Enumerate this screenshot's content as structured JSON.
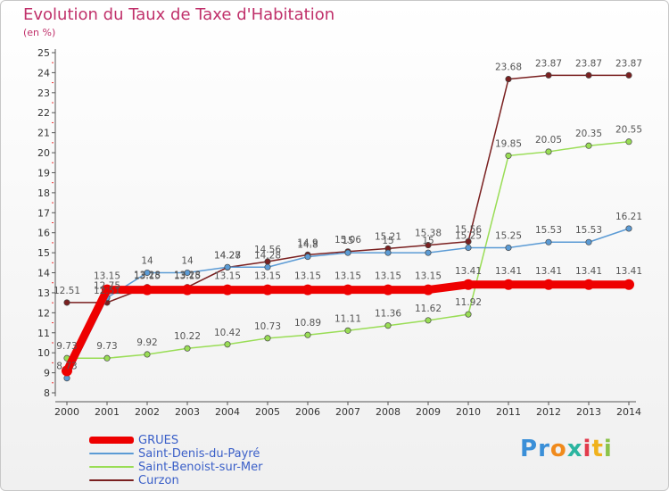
{
  "title": "Evolution du Taux de Taxe d'Habitation",
  "subtitle": "(en %)",
  "logo": "Proxiti",
  "chart_data": {
    "type": "line",
    "x": [
      "2000",
      "2001",
      "2002",
      "2003",
      "2004",
      "2005",
      "2006",
      "2007",
      "2008",
      "2009",
      "2010",
      "2011",
      "2012",
      "2013",
      "2014"
    ],
    "ylim": [
      8,
      25
    ],
    "yticks": [
      "8",
      "9",
      "10",
      "11",
      "12",
      "13",
      "14",
      "15",
      "16",
      "17",
      "18",
      "19",
      "20",
      "21",
      "22",
      "23",
      "24",
      "25"
    ],
    "grid": false,
    "legend_position": "bottom-left",
    "series": [
      {
        "name": "GRUES",
        "color": "#ee0000",
        "values": [
          9.1,
          13.15,
          13.15,
          13.15,
          13.15,
          13.15,
          13.15,
          13.15,
          13.15,
          13.15,
          13.41,
          13.41,
          13.41,
          13.41,
          13.41
        ],
        "labels": [
          "",
          "13.15",
          "13.15",
          "13.15",
          "13.15",
          "13.15",
          "13.15",
          "13.15",
          "13.15",
          "13.15",
          "13.41",
          "13.41",
          "13.41",
          "13.41",
          "13.41"
        ]
      },
      {
        "name": "Saint-Denis-du-Payré",
        "color": "#5b9bd5",
        "values": [
          8.73,
          12.75,
          14,
          14,
          14.28,
          14.28,
          14.8,
          15,
          15,
          15,
          15.25,
          15.25,
          15.53,
          15.53,
          16.21
        ],
        "labels": [
          "8.73",
          "12.75",
          "14",
          "14",
          "14.28",
          "14.28",
          "14.8",
          "15",
          "15",
          "15",
          "15.25",
          "15.25",
          "15.53",
          "15.53",
          "16.21"
        ]
      },
      {
        "name": "Saint-Benoist-sur-Mer",
        "color": "#99dd55",
        "values": [
          9.73,
          9.73,
          9.92,
          10.22,
          10.42,
          10.73,
          10.89,
          11.11,
          11.36,
          11.62,
          11.92,
          19.85,
          20.05,
          20.35,
          20.55
        ],
        "labels": [
          "9.73",
          "9.73",
          "9.92",
          "10.22",
          "10.42",
          "10.73",
          "10.89",
          "11.11",
          "11.36",
          "11.62",
          "11.92",
          "19.85",
          "20.05",
          "20.35",
          "20.55"
        ]
      },
      {
        "name": "Curzon",
        "color": "#7a2020",
        "values": [
          12.51,
          12.51,
          13.28,
          13.28,
          14.27,
          14.56,
          14.9,
          15.06,
          15.21,
          15.38,
          15.56,
          23.68,
          23.87,
          23.87,
          23.87
        ],
        "labels": [
          "12.51",
          "12.51",
          "13.28",
          "13.28",
          "14.27",
          "14.56",
          "14.9",
          "15.06",
          "15.21",
          "15.38",
          "15.56",
          "23.68",
          "23.87",
          "23.87",
          "23.87"
        ]
      }
    ]
  }
}
